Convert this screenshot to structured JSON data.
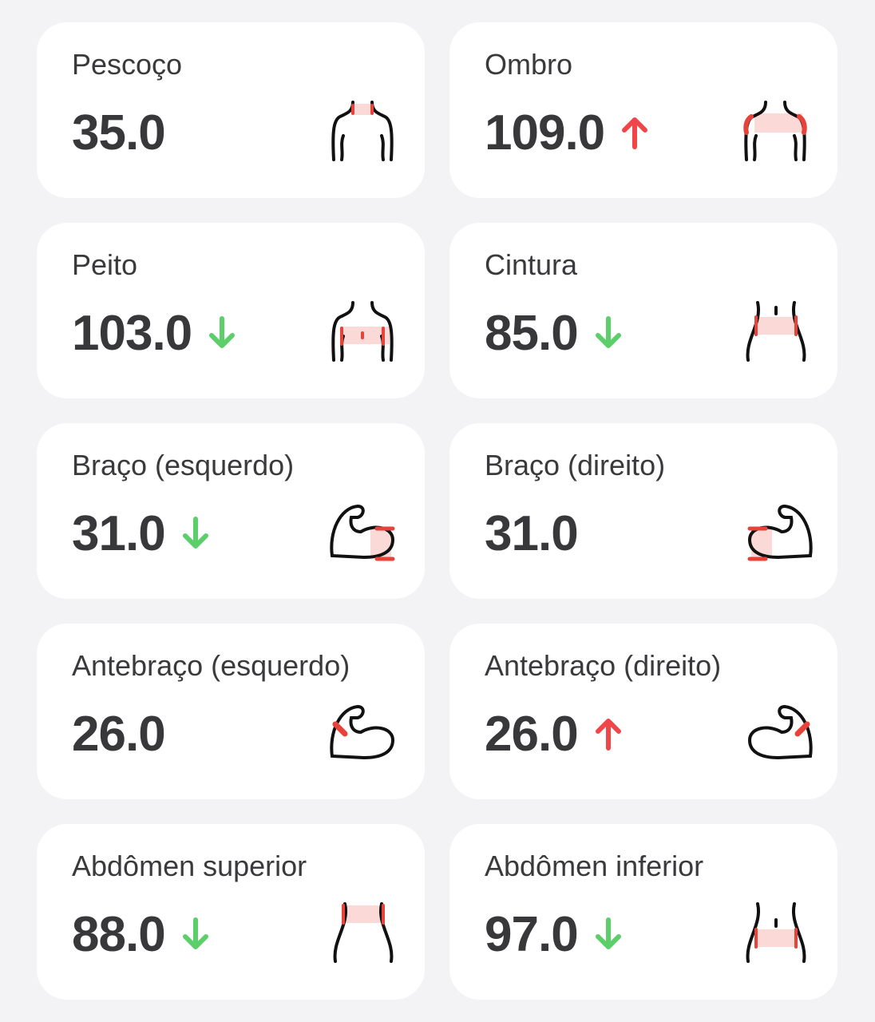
{
  "cards": [
    {
      "label": "Pescoço",
      "value": "35.0"
    },
    {
      "label": "Ombro",
      "value": "109.0",
      "trend": "up"
    },
    {
      "label": "Peito",
      "value": "103.0",
      "trend": "down"
    },
    {
      "label": "Cintura",
      "value": "85.0",
      "trend": "down"
    },
    {
      "label": "Braço (esquerdo)",
      "value": "31.0",
      "trend": "down"
    },
    {
      "label": "Braço (direito)",
      "value": "31.0"
    },
    {
      "label": "Antebraço (esquerdo)",
      "value": "26.0"
    },
    {
      "label": "Antebraço (direito)",
      "value": "26.0",
      "trend": "up"
    },
    {
      "label": "Abdômen superior",
      "value": "88.0",
      "trend": "down"
    },
    {
      "label": "Abdômen inferior",
      "value": "97.0",
      "trend": "down"
    }
  ]
}
